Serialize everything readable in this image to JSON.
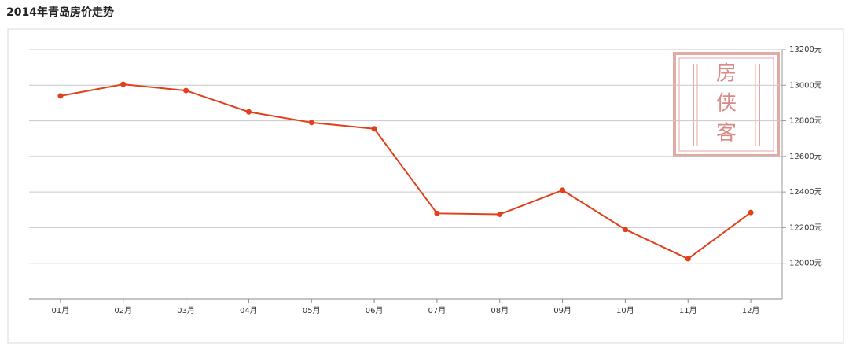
{
  "chart_data": {
    "type": "line",
    "title": "2014年青岛房价走势",
    "watermark": "房侠客",
    "categories": [
      "01月",
      "02月",
      "03月",
      "04月",
      "05月",
      "06月",
      "07月",
      "08月",
      "09月",
      "10月",
      "11月",
      "12月"
    ],
    "series": [
      {
        "color": "#e0401a",
        "values": [
          12940,
          13005,
          12970,
          12850,
          12790,
          12755,
          12280,
          12275,
          12410,
          12190,
          12025,
          12285
        ]
      }
    ],
    "ylim": [
      11800,
      13200
    ],
    "yticks": [
      {
        "value": 12000,
        "label": "12000元"
      },
      {
        "value": 12200,
        "label": "12200元"
      },
      {
        "value": 12400,
        "label": "12400元"
      },
      {
        "value": 12600,
        "label": "12600元"
      },
      {
        "value": 12800,
        "label": "12800元"
      },
      {
        "value": 13000,
        "label": "13000元"
      },
      {
        "value": 13200,
        "label": "13200元"
      }
    ],
    "grid": true
  }
}
